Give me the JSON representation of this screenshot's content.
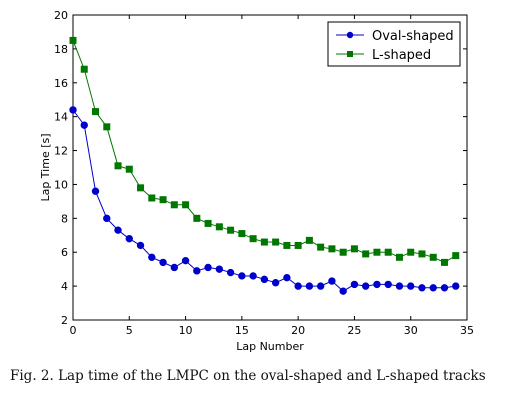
{
  "chart_data": {
    "type": "line",
    "xlabel": "Lap Number",
    "ylabel": "Lap Time [s]",
    "xlim": [
      0,
      35
    ],
    "ylim": [
      2,
      20
    ],
    "xticks": [
      0,
      5,
      10,
      15,
      20,
      25,
      30,
      35
    ],
    "yticks": [
      2,
      4,
      6,
      8,
      10,
      12,
      14,
      16,
      18,
      20
    ],
    "grid": false,
    "legend_position": "top-right",
    "series": [
      {
        "name": "Oval-shaped",
        "color": "#0000cc",
        "marker": "circle",
        "x": [
          0,
          1,
          2,
          3,
          4,
          5,
          6,
          7,
          8,
          9,
          10,
          11,
          12,
          13,
          14,
          15,
          16,
          17,
          18,
          19,
          20,
          21,
          22,
          23,
          24,
          25,
          26,
          27,
          28,
          29,
          30,
          31,
          32,
          33,
          34
        ],
        "values": [
          14.4,
          13.5,
          9.6,
          8.0,
          7.3,
          6.8,
          6.4,
          5.7,
          5.4,
          5.1,
          5.5,
          4.9,
          5.1,
          5.0,
          4.8,
          4.6,
          4.6,
          4.4,
          4.2,
          4.5,
          4.0,
          4.0,
          4.0,
          4.3,
          3.7,
          4.1,
          4.0,
          4.1,
          4.1,
          4.0,
          4.0,
          3.9,
          3.9,
          3.9,
          4.0
        ]
      },
      {
        "name": "L-shaped",
        "color": "#007700",
        "marker": "square",
        "x": [
          0,
          1,
          2,
          3,
          4,
          5,
          6,
          7,
          8,
          9,
          10,
          11,
          12,
          13,
          14,
          15,
          16,
          17,
          18,
          19,
          20,
          21,
          22,
          23,
          24,
          25,
          26,
          27,
          28,
          29,
          30,
          31,
          32,
          33,
          34
        ],
        "values": [
          18.5,
          16.8,
          14.3,
          13.4,
          11.1,
          10.9,
          9.8,
          9.2,
          9.1,
          8.8,
          8.8,
          8.0,
          7.7,
          7.5,
          7.3,
          7.1,
          6.8,
          6.6,
          6.6,
          6.4,
          6.4,
          6.7,
          6.3,
          6.2,
          6.0,
          6.2,
          5.9,
          6.0,
          6.0,
          5.7,
          6.0,
          5.9,
          5.7,
          5.4,
          5.8
        ]
      }
    ]
  },
  "caption": {
    "text": "Fig. 2.   Lap time of the LMPC on the oval-shaped and L-shaped tracks"
  }
}
